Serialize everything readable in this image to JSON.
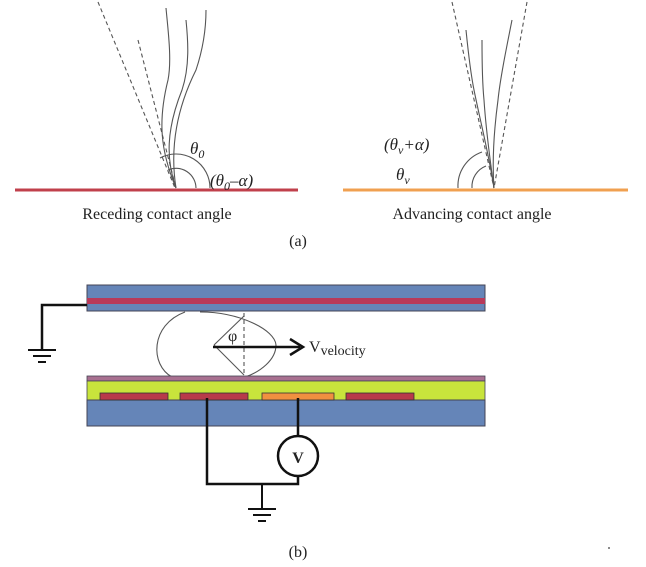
{
  "panel_a": {
    "receding": {
      "angle_label": {
        "base": "θ",
        "sub": "0"
      },
      "angle_minus_label": {
        "open": "(θ",
        "sub": "0",
        "close": "–α)"
      },
      "caption": "Receding contact angle"
    },
    "advancing": {
      "angle_plus_label": {
        "open": "(θ",
        "sub": "v",
        "close": "+α)"
      },
      "angle_label": {
        "base": "θ",
        "sub": "v"
      },
      "caption": "Advancing contact angle"
    },
    "label": "(a)"
  },
  "panel_b": {
    "velocity_label": {
      "base": "V",
      "sub": "velocity"
    },
    "angle_label": "φ",
    "voltmeter_label": "V",
    "label": "(b)"
  }
}
